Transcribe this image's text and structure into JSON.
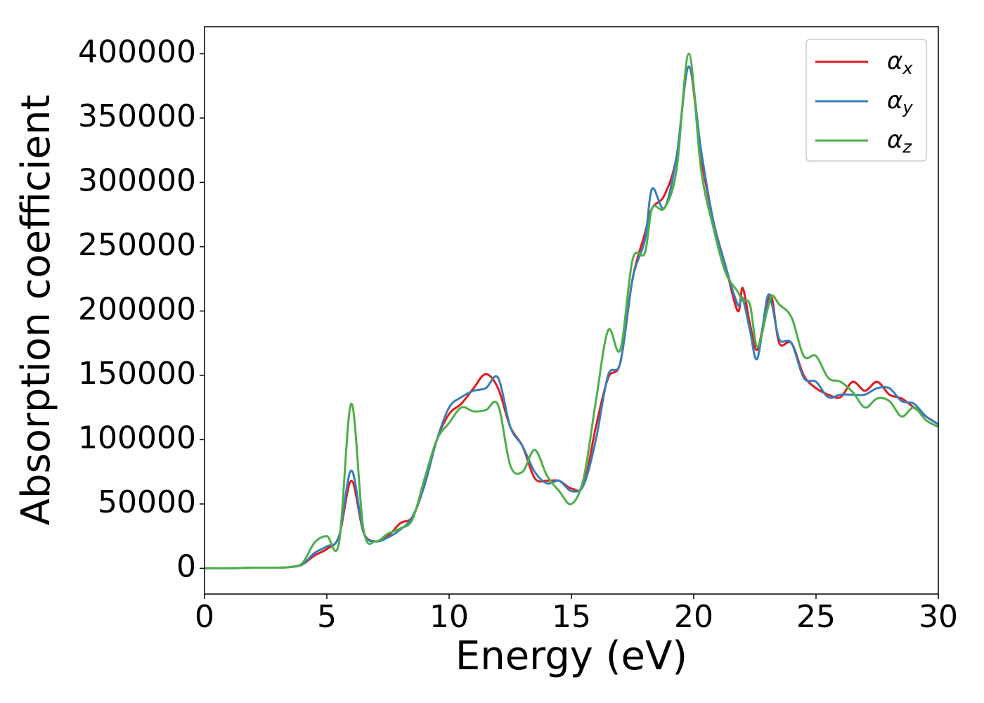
{
  "chart_data": {
    "type": "line",
    "xlabel": "Energy (eV)",
    "ylabel": "Absorption coefficient",
    "x": [
      0,
      1,
      2,
      3,
      3.5,
      4,
      4.5,
      5,
      5.5,
      6,
      6.5,
      7,
      7.5,
      8,
      8.5,
      9,
      9.5,
      10,
      10.5,
      11,
      11.5,
      12,
      12.5,
      13,
      13.5,
      14,
      14.5,
      15,
      15.5,
      16,
      16.5,
      17,
      17.5,
      18,
      18.3,
      18.8,
      19.3,
      19.8,
      20.3,
      20.8,
      21.3,
      21.8,
      22,
      22.3,
      22.6,
      23,
      23.2,
      23.5,
      24,
      24.5,
      25,
      25.5,
      26,
      26.5,
      27,
      27.5,
      28,
      28.5,
      29,
      29.5,
      30
    ],
    "series": [
      {
        "name": "αx",
        "color": "#e41a1c",
        "values": [
          0,
          0,
          500,
          500,
          1000,
          3000,
          10000,
          15000,
          25000,
          68000,
          28000,
          21000,
          25000,
          35000,
          40000,
          65000,
          100000,
          120000,
          128000,
          140000,
          151000,
          140000,
          110000,
          95000,
          70000,
          68000,
          68000,
          62000,
          65000,
          110000,
          148000,
          160000,
          225000,
          260000,
          280000,
          290000,
          320000,
          390000,
          320000,
          270000,
          235000,
          200000,
          218000,
          190000,
          170000,
          205000,
          210000,
          175000,
          175000,
          150000,
          140000,
          135000,
          133000,
          145000,
          138000,
          145000,
          135000,
          132000,
          125000,
          118000,
          112000
        ]
      },
      {
        "name": "αy",
        "color": "#377eb8",
        "values": [
          0,
          0,
          500,
          500,
          1000,
          3000,
          12000,
          17000,
          25000,
          76000,
          28000,
          21000,
          24000,
          30000,
          40000,
          65000,
          100000,
          125000,
          133000,
          138000,
          140000,
          148000,
          110000,
          95000,
          75000,
          66000,
          68000,
          60000,
          65000,
          100000,
          150000,
          160000,
          225000,
          255000,
          295000,
          280000,
          320000,
          390000,
          325000,
          270000,
          235000,
          205000,
          210000,
          185000,
          163000,
          210000,
          205000,
          178000,
          175000,
          148000,
          145000,
          133000,
          135000,
          135000,
          135000,
          140000,
          140000,
          130000,
          128000,
          118000,
          112000
        ]
      },
      {
        "name": "αz",
        "color": "#4daf4a",
        "values": [
          0,
          0,
          500,
          500,
          1000,
          4000,
          20000,
          25000,
          20000,
          128000,
          30000,
          21000,
          27000,
          31000,
          38000,
          70000,
          100000,
          113000,
          125000,
          122000,
          123000,
          127000,
          80000,
          75000,
          92000,
          72000,
          60000,
          50000,
          70000,
          130000,
          185000,
          170000,
          240000,
          245000,
          280000,
          280000,
          310000,
          400000,
          310000,
          265000,
          230000,
          215000,
          208000,
          205000,
          172000,
          200000,
          212000,
          205000,
          195000,
          165000,
          165000,
          148000,
          145000,
          137000,
          125000,
          132000,
          130000,
          118000,
          125000,
          115000,
          110000
        ]
      }
    ],
    "xlim": [
      0,
      30
    ],
    "xticks": [
      0,
      5,
      10,
      15,
      20,
      25,
      30
    ],
    "ylim": [
      -20000,
      421000
    ],
    "yticks": [
      0,
      50000,
      100000,
      150000,
      200000,
      250000,
      300000,
      350000,
      400000
    ],
    "grid": false,
    "legend": "upper right"
  }
}
